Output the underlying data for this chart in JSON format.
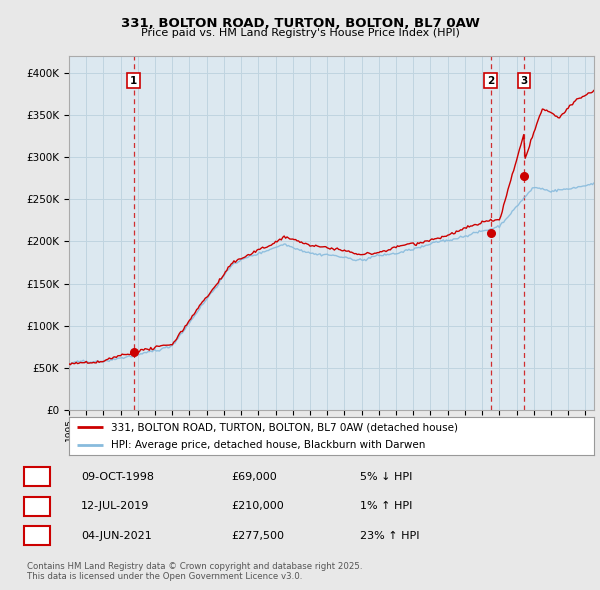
{
  "title": "331, BOLTON ROAD, TURTON, BOLTON, BL7 0AW",
  "subtitle": "Price paid vs. HM Land Registry's House Price Index (HPI)",
  "ylim": [
    0,
    420000
  ],
  "yticks": [
    0,
    50000,
    100000,
    150000,
    200000,
    250000,
    300000,
    350000,
    400000
  ],
  "sale_prices": [
    69000,
    210000,
    277500
  ],
  "sale_labels": [
    "1",
    "2",
    "3"
  ],
  "sale_year_nums": [
    1998.75,
    2019.5,
    2021.42
  ],
  "legend_line1": "331, BOLTON ROAD, TURTON, BOLTON, BL7 0AW (detached house)",
  "legend_line2": "HPI: Average price, detached house, Blackburn with Darwen",
  "table_data": [
    [
      "1",
      "09-OCT-1998",
      "£69,000",
      "5% ↓ HPI"
    ],
    [
      "2",
      "12-JUL-2019",
      "£210,000",
      "1% ↑ HPI"
    ],
    [
      "3",
      "04-JUN-2021",
      "£277,500",
      "23% ↑ HPI"
    ]
  ],
  "footer": "Contains HM Land Registry data © Crown copyright and database right 2025.\nThis data is licensed under the Open Government Licence v3.0.",
  "property_color": "#cc0000",
  "hpi_color": "#88bbdd",
  "background_color": "#e8e8e8",
  "plot_bg_color": "#dce8f0",
  "grid_color": "#c0d4e0"
}
